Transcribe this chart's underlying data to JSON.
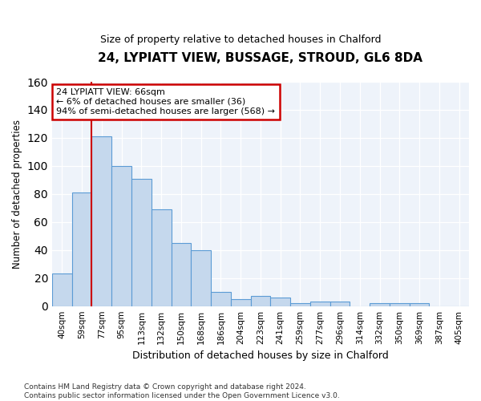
{
  "title1": "24, LYPIATT VIEW, BUSSAGE, STROUD, GL6 8DA",
  "title2": "Size of property relative to detached houses in Chalford",
  "xlabel": "Distribution of detached houses by size in Chalford",
  "ylabel": "Number of detached properties",
  "bar_labels": [
    "40sqm",
    "59sqm",
    "77sqm",
    "95sqm",
    "113sqm",
    "132sqm",
    "150sqm",
    "168sqm",
    "186sqm",
    "204sqm",
    "223sqm",
    "241sqm",
    "259sqm",
    "277sqm",
    "296sqm",
    "314sqm",
    "332sqm",
    "350sqm",
    "369sqm",
    "387sqm",
    "405sqm"
  ],
  "bar_values": [
    23,
    81,
    121,
    100,
    91,
    69,
    45,
    40,
    10,
    5,
    7,
    6,
    2,
    3,
    3,
    0,
    2,
    2,
    2,
    0,
    0
  ],
  "bar_color": "#c5d8ed",
  "bar_edge_color": "#5b9bd5",
  "ylim": [
    0,
    160
  ],
  "yticks": [
    0,
    20,
    40,
    60,
    80,
    100,
    120,
    140,
    160
  ],
  "vline_color": "#cc0000",
  "annotation_text": "24 LYPIATT VIEW: 66sqm\n← 6% of detached houses are smaller (36)\n94% of semi-detached houses are larger (568) →",
  "annotation_box_color": "#ffffff",
  "annotation_box_edge": "#cc0000",
  "footer_text": "Contains HM Land Registry data © Crown copyright and database right 2024.\nContains public sector information licensed under the Open Government Licence v3.0.",
  "bg_color": "#eef3fa",
  "title1_fontsize": 11,
  "title2_fontsize": 9
}
